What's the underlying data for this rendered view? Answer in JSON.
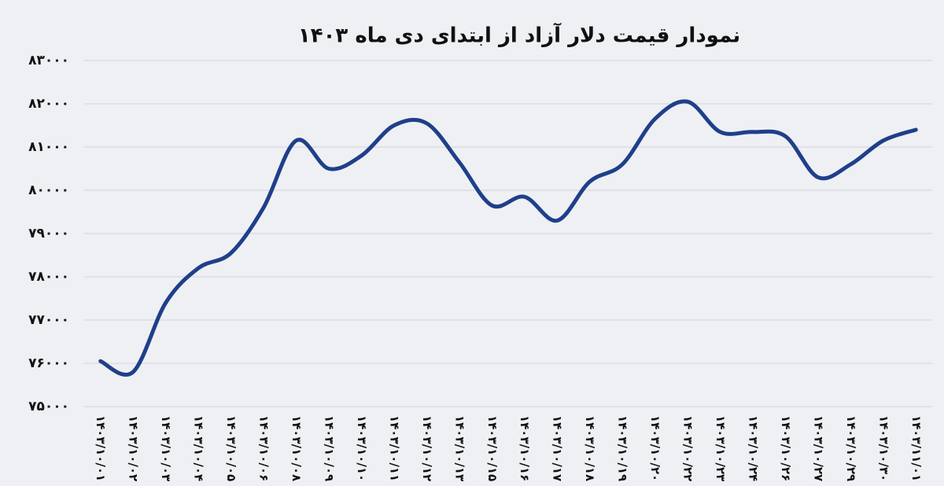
{
  "chart_data": {
    "type": "line",
    "title": "نمودار قیمت دلار آزاد از ابتدای دی ماه ۱۴۰۳",
    "categories": [
      "۱۴۰۳/۱۰/۰۱",
      "۱۴۰۳/۱۰/۰۲",
      "۱۴۰۳/۱۰/۰۳",
      "۱۴۰۳/۱۰/۰۴",
      "۱۴۰۳/۱۰/۰۵",
      "۱۴۰۳/۱۰/۰۶",
      "۱۴۰۳/۱۰/۰۸",
      "۱۴۰۳/۱۰/۰۹",
      "۱۴۰۳/۱۰/۱۰",
      "۱۴۰۳/۱۰/۱۱",
      "۱۴۰۳/۱۰/۱۲",
      "۱۴۰۳/۱۰/۱۳",
      "۱۴۰۳/۱۰/۱۵",
      "۱۴۰۳/۱۰/۱۶",
      "۱۴۰۳/۱۰/۱۷",
      "۱۴۰۳/۱۰/۱۸",
      "۱۴۰۳/۱۰/۱۹",
      "۱۴۰۳/۱۰/۲۰",
      "۱۴۰۳/۱۰/۲۲",
      "۱۴۰۳/۱۰/۲۳",
      "۱۴۰۳/۱۰/۲۴",
      "۱۴۰۳/۱۰/۲۶",
      "۱۴۰۳/۱۰/۲۷",
      "۱۴۰۳/۱۰/۲۹",
      "۱۴۰۳/۱۰/۳۰",
      "۱۴۰۳/۱۱/۰۱"
    ],
    "values": [
      76050,
      75800,
      77400,
      78200,
      78550,
      79600,
      81150,
      80500,
      80800,
      81500,
      81550,
      80650,
      79650,
      79850,
      79300,
      80200,
      80600,
      81650,
      82050,
      81350,
      81350,
      81250,
      80300,
      80600,
      81150,
      81400
    ],
    "color": "#1f3f8a",
    "ylim": [
      75000,
      83000
    ],
    "yticks": [
      {
        "value": 75000,
        "label": "۷۵۰۰۰"
      },
      {
        "value": 76000,
        "label": "۷۶۰۰۰"
      },
      {
        "value": 77000,
        "label": "۷۷۰۰۰"
      },
      {
        "value": 78000,
        "label": "۷۸۰۰۰"
      },
      {
        "value": 79000,
        "label": "۷۹۰۰۰"
      },
      {
        "value": 80000,
        "label": "۸۰۰۰۰"
      },
      {
        "value": 81000,
        "label": "۸۱۰۰۰"
      },
      {
        "value": 82000,
        "label": "۸۲۰۰۰"
      },
      {
        "value": 83000,
        "label": "۸۳۰۰۰"
      }
    ],
    "grid": true
  }
}
